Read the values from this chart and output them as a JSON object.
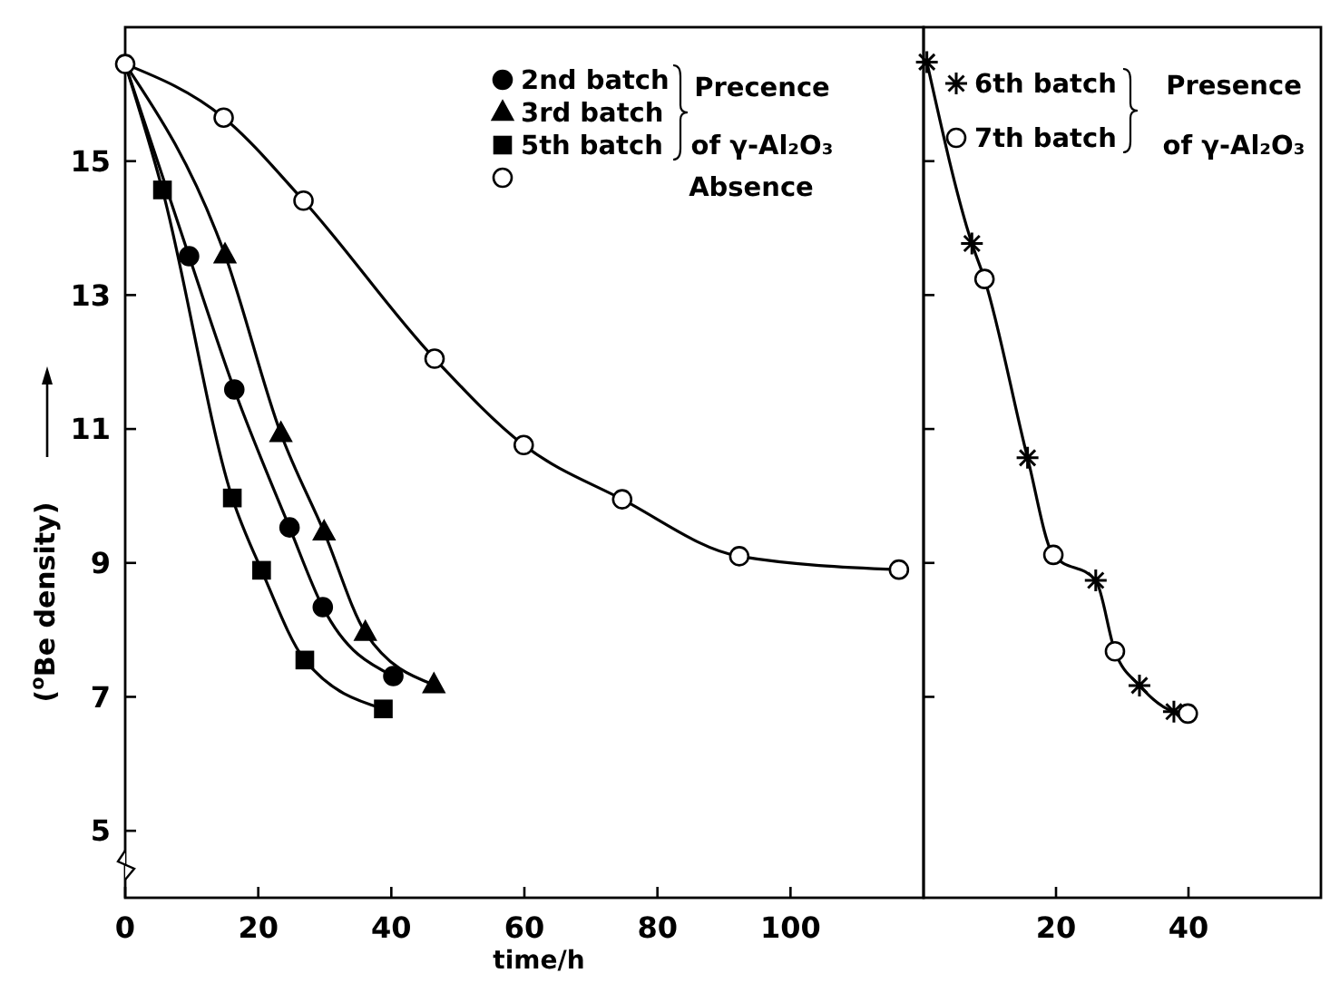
{
  "chart_data": [
    {
      "type": "scatter",
      "xlabel": "time/h",
      "ylabel": "($^{o}$Be density)",
      "xlim": [
        0,
        120
      ],
      "ylim": [
        4,
        17
      ],
      "xticks": [
        0,
        20,
        40,
        60,
        80,
        100
      ],
      "yticks": [
        5,
        7,
        9,
        11,
        13,
        15
      ],
      "grid": false,
      "legend": "top right",
      "annotations": [
        "Precence",
        "of γ-Al₂O₃",
        "Absence"
      ],
      "series": [
        {
          "type": "line",
          "marker": "none",
          "line_style": "solid",
          "color": "#000000",
          "x": [
            0,
            9.6,
            16.4,
            24.7,
            29.7,
            40.3
          ],
          "values": [
            16.45,
            13.58,
            11.59,
            9.53,
            8.34,
            7.31
          ]
        },
        {
          "type": "line",
          "marker": "none",
          "line_style": "solid",
          "color": "#000000",
          "x": [
            0,
            15,
            23.4,
            29.9,
            36.1,
            46.4
          ],
          "values": [
            16.45,
            13.6,
            10.93,
            9.46,
            7.96,
            7.18
          ]
        },
        {
          "type": "line",
          "marker": "none",
          "line_style": "solid",
          "color": "#000000",
          "x": [
            0,
            5.6,
            16.1,
            20.5,
            27,
            38.8
          ],
          "values": [
            16.45,
            14.57,
            9.97,
            8.89,
            7.55,
            6.82
          ]
        },
        {
          "type": "line",
          "marker": "none",
          "line_style": "solid",
          "color": "#000000",
          "x": [
            0,
            14.8,
            26.8,
            46.5,
            59.9,
            74.7,
            92.3,
            116.3
          ],
          "values": [
            16.45,
            15.65,
            14.41,
            12.05,
            10.76,
            9.95,
            9.1,
            8.9
          ]
        },
        {
          "name": "2nd batch",
          "marker": "circle",
          "color": "#000000",
          "x": [
            9.6,
            16.4,
            24.7,
            29.7,
            40.3
          ],
          "values": [
            13.58,
            11.59,
            9.53,
            8.34,
            7.31
          ]
        },
        {
          "name": "3rd batch",
          "marker": "triangle",
          "color": "#000000",
          "x": [
            15,
            23.4,
            29.9,
            36.1,
            46.4
          ],
          "values": [
            13.6,
            10.93,
            9.46,
            7.96,
            7.18
          ]
        },
        {
          "name": "5th batch",
          "marker": "square",
          "color": "#000000",
          "x": [
            5.6,
            16.1,
            20.5,
            27,
            38.8
          ],
          "values": [
            14.57,
            9.97,
            8.89,
            7.55,
            6.82
          ]
        },
        {
          "marker": "circle",
          "color": "#ffffff",
          "x": [
            0,
            14.8,
            26.8,
            46.5,
            59.9,
            74.7,
            92.3,
            116.3
          ],
          "values": [
            16.45,
            15.65,
            14.41,
            12.05,
            10.76,
            9.95,
            9.1,
            8.9
          ]
        }
      ]
    },
    {
      "type": "scatter",
      "xlim": [
        0,
        60
      ],
      "ylim": [
        4,
        17
      ],
      "xticks": [
        20,
        40
      ],
      "yticks": [
        7,
        9,
        11,
        13,
        15
      ],
      "tick_labels": "x",
      "grid": false,
      "legend": "top",
      "annotations": [
        "Presence",
        "of γ-Al₂O₃"
      ],
      "series": [
        {
          "type": "line",
          "marker": "none",
          "line_style": "solid",
          "color": "#000000",
          "x": [
            0.5,
            7.3,
            9.2,
            15.7,
            19.6,
            26,
            28.9,
            32.6,
            37.8,
            39.9
          ],
          "values": [
            16.48,
            13.77,
            13.24,
            10.57,
            9.12,
            8.74,
            7.68,
            7.17,
            6.78,
            6.75
          ]
        },
        {
          "name": "6th batch",
          "marker": "cross",
          "color": "#000000",
          "x": [
            0.5,
            7.3,
            15.7,
            26,
            32.6,
            37.8
          ],
          "values": [
            16.48,
            13.77,
            10.57,
            8.74,
            7.17,
            6.78
          ]
        },
        {
          "name": "7th batch",
          "marker": "circle",
          "color": "#ffffff",
          "x": [
            9.2,
            19.6,
            28.9,
            39.9
          ],
          "values": [
            13.24,
            9.12,
            7.68,
            6.75
          ]
        }
      ]
    }
  ]
}
